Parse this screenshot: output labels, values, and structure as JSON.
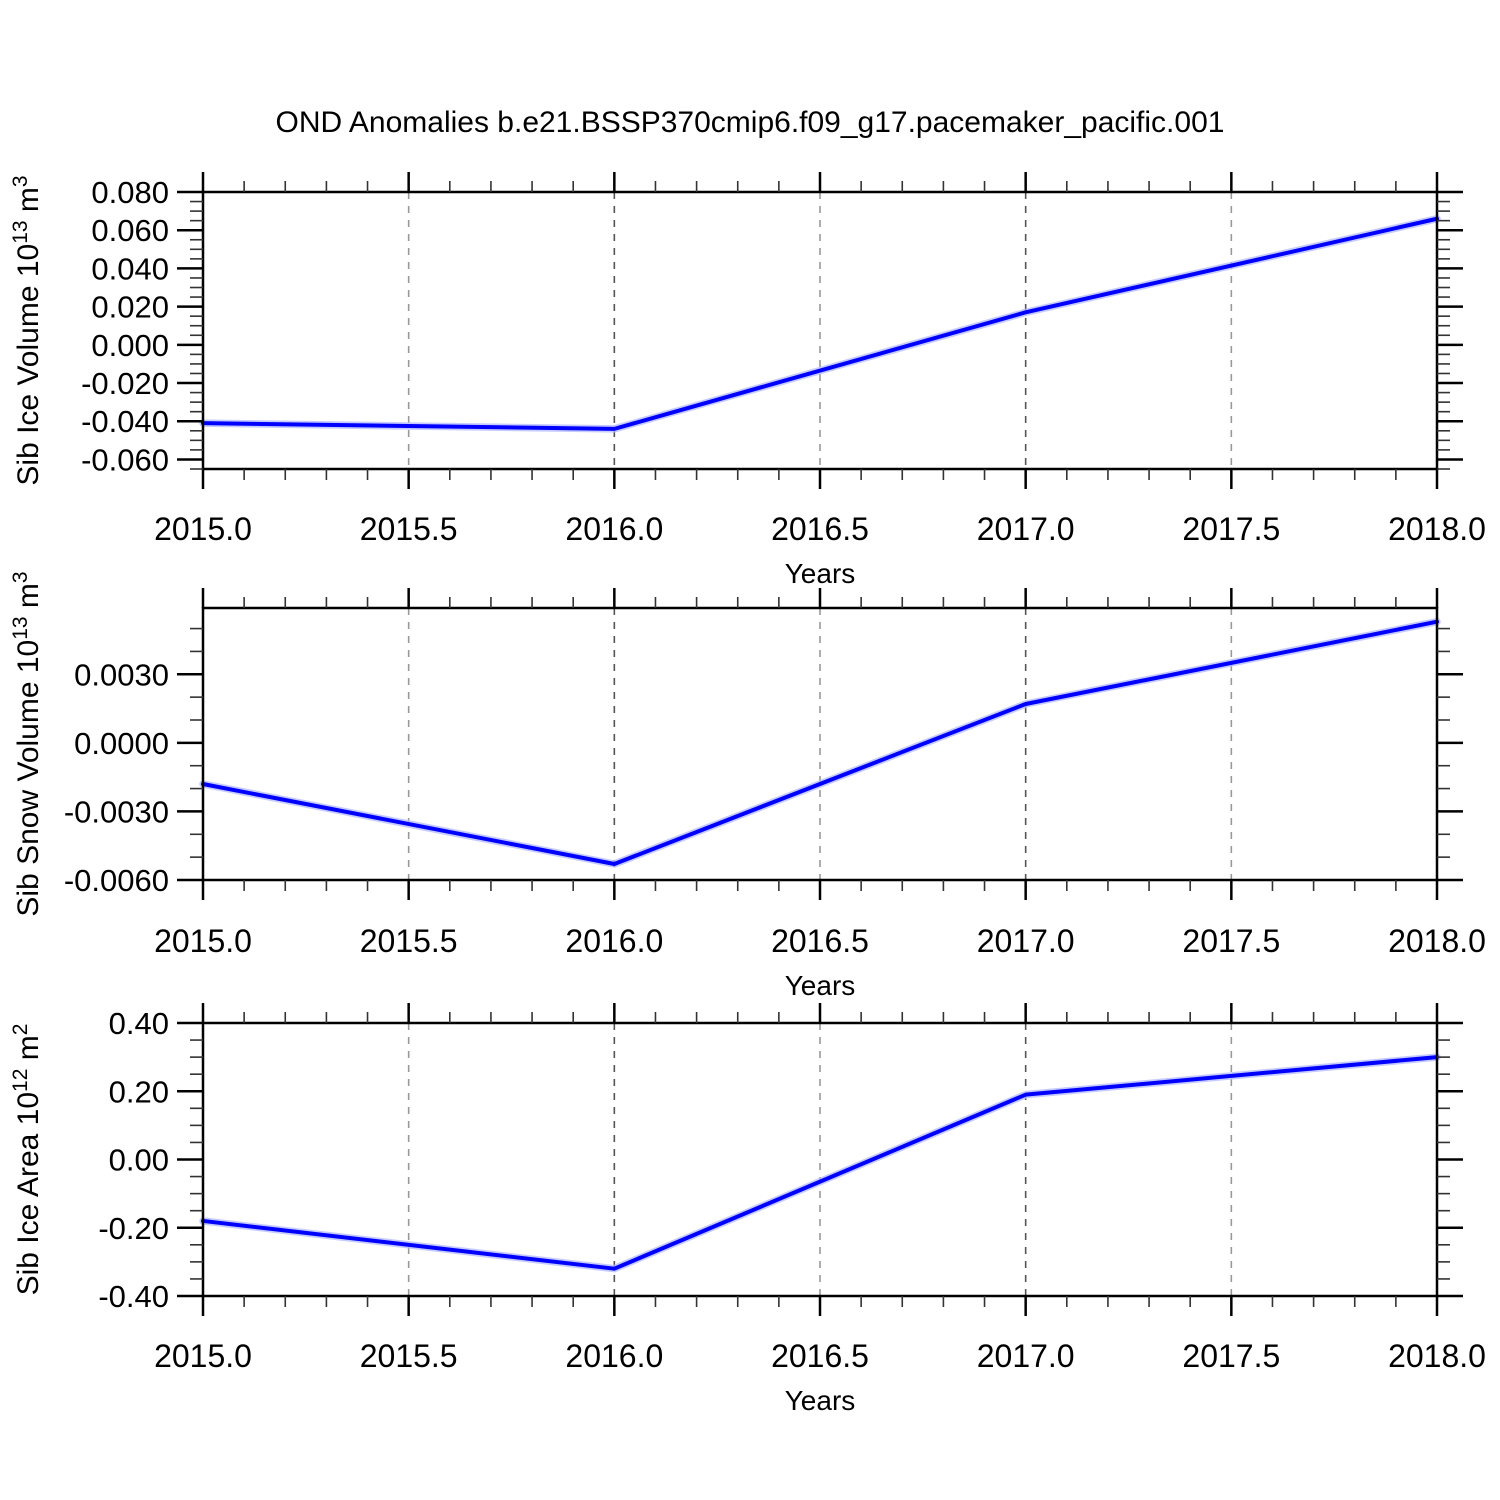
{
  "title": "OND Anomalies b.e21.BSSP370cmip6.f09_g17.pacemaker_pacific.001",
  "colors": {
    "line": "#0000ff",
    "line_halo": "#b3baff",
    "frame": "#000000",
    "grid_integer_year": "#555555",
    "grid_half_year": "#999999",
    "minor_tick": "#333333",
    "text": "#000000",
    "background": "#ffffff"
  },
  "x_axis": {
    "label": "Years",
    "lim": [
      2015.0,
      2018.0
    ],
    "major_ticks": [
      2015.0,
      2015.5,
      2016.0,
      2016.5,
      2017.0,
      2017.5,
      2018.0
    ],
    "tick_labels": [
      "2015.0",
      "2015.5",
      "2016.0",
      "2016.5",
      "2017.0",
      "2017.5",
      "2018.0"
    ],
    "minor_step": 0.1,
    "gridlines": [
      2015.5,
      2016.0,
      2016.5,
      2017.0,
      2017.5
    ]
  },
  "chart_data": [
    {
      "type": "line",
      "series_name": "sib-ice-volume",
      "ylabel_plain": "Sib Ice Volume 10^13 m^3",
      "ylabel_segments": [
        {
          "t": "Sib Ice Volume 10"
        },
        {
          "t": "13",
          "sup": true
        },
        {
          "t": " m"
        },
        {
          "t": "3",
          "sup": true
        }
      ],
      "xlabel": "Years",
      "x": [
        2015,
        2016,
        2017,
        2018
      ],
      "values": [
        -0.041,
        -0.044,
        0.017,
        0.066
      ],
      "ylim": [
        -0.065,
        0.08
      ],
      "y_major_ticks": [
        0.08,
        0.06,
        0.04,
        0.02,
        0.0,
        -0.02,
        -0.04,
        -0.06
      ],
      "y_tick_labels": [
        "0.080",
        "0.060",
        "0.040",
        "0.020",
        "0.000",
        "-0.020",
        "-0.040",
        "-0.060"
      ],
      "y_minor_step": 0.005,
      "grid": "vertical-dashed"
    },
    {
      "type": "line",
      "series_name": "sib-snow-volume",
      "ylabel_plain": "Sib Snow Volume 10^13 m^3",
      "ylabel_segments": [
        {
          "t": "Sib Snow Volume 10"
        },
        {
          "t": "13",
          "sup": true
        },
        {
          "t": " m"
        },
        {
          "t": "3",
          "sup": true
        }
      ],
      "xlabel": "Years",
      "x": [
        2015,
        2016,
        2017,
        2018
      ],
      "values": [
        -0.0018,
        -0.0053,
        0.0017,
        0.0053
      ],
      "ylim": [
        -0.006,
        0.0059
      ],
      "y_major_ticks": [
        0.003,
        0.0,
        -0.003,
        -0.006
      ],
      "y_tick_labels": [
        "0.0030",
        "0.0000",
        "-0.0030",
        "-0.0060"
      ],
      "y_minor_step": 0.001,
      "grid": "vertical-dashed"
    },
    {
      "type": "line",
      "series_name": "sib-ice-area",
      "ylabel_plain": "Sib Ice Area 10^12 m^2",
      "ylabel_segments": [
        {
          "t": "Sib Ice Area 10"
        },
        {
          "t": "12",
          "sup": true
        },
        {
          "t": " m"
        },
        {
          "t": "2",
          "sup": true
        }
      ],
      "xlabel": "Years",
      "x": [
        2015,
        2016,
        2017,
        2018
      ],
      "values": [
        -0.18,
        -0.32,
        0.19,
        0.3
      ],
      "ylim": [
        -0.4,
        0.4
      ],
      "y_major_ticks": [
        0.4,
        0.2,
        0.0,
        -0.2,
        -0.4
      ],
      "y_tick_labels": [
        "0.40",
        "0.20",
        "0.00",
        "-0.20",
        "-0.40"
      ],
      "y_minor_step": 0.05,
      "grid": "vertical-dashed"
    }
  ]
}
